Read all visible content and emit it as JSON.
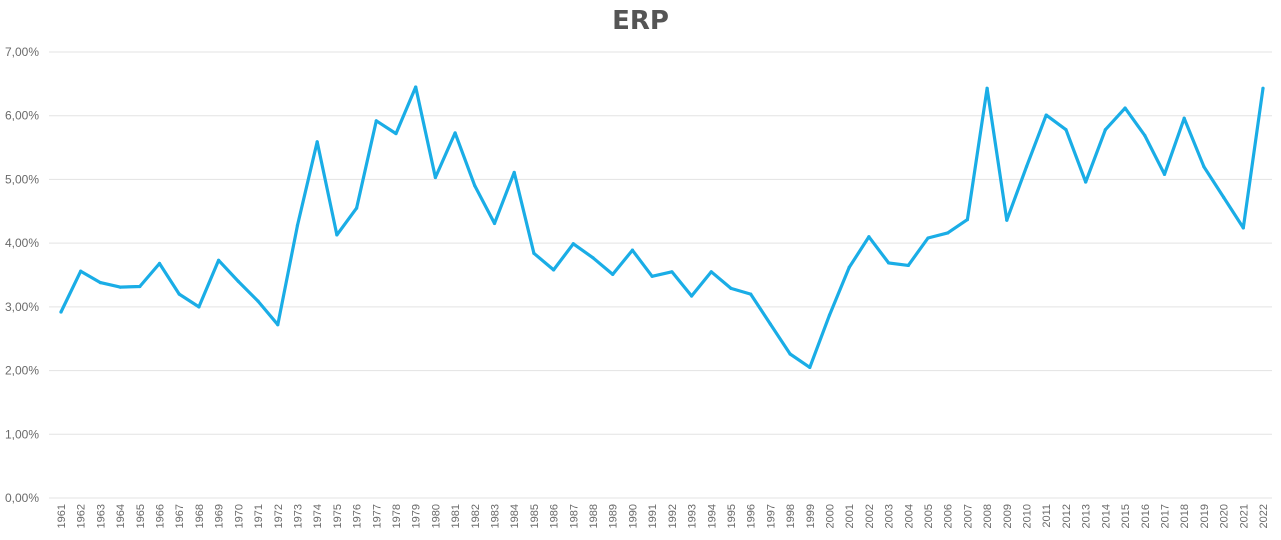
{
  "chart_data": {
    "type": "line",
    "title": "ERP",
    "xlabel": "",
    "ylabel": "",
    "ylim": [
      0,
      7
    ],
    "yticks": [
      0,
      1,
      2,
      3,
      4,
      5,
      6,
      7
    ],
    "ytick_labels": [
      "0,00%",
      "1,00%",
      "2,00%",
      "3,00%",
      "4,00%",
      "5,00%",
      "6,00%",
      "7,00%"
    ],
    "grid": true,
    "legend": "none",
    "line_color": "#1aade6",
    "categories": [
      "1961",
      "1962",
      "1963",
      "1964",
      "1965",
      "1966",
      "1967",
      "1968",
      "1969",
      "1970",
      "1971",
      "1972",
      "1973",
      "1974",
      "1975",
      "1976",
      "1977",
      "1978",
      "1979",
      "1980",
      "1981",
      "1982",
      "1983",
      "1984",
      "1985",
      "1986",
      "1987",
      "1988",
      "1989",
      "1990",
      "1991",
      "1992",
      "1993",
      "1994",
      "1995",
      "1996",
      "1997",
      "1998",
      "1999",
      "2000",
      "2001",
      "2002",
      "2003",
      "2004",
      "2005",
      "2006",
      "2007",
      "2008",
      "2009",
      "2010",
      "2011",
      "2012",
      "2013",
      "2014",
      "2015",
      "2016",
      "2017",
      "2018",
      "2019",
      "2020",
      "2021",
      "2022"
    ],
    "series": [
      {
        "name": "",
        "values": [
          2.92,
          3.56,
          3.38,
          3.31,
          3.32,
          3.68,
          3.2,
          3.0,
          3.73,
          3.4,
          3.09,
          2.72,
          4.28,
          5.59,
          4.13,
          4.55,
          5.92,
          5.72,
          6.45,
          5.03,
          5.73,
          4.9,
          4.31,
          5.11,
          3.84,
          3.58,
          3.99,
          3.77,
          3.51,
          3.89,
          3.48,
          3.55,
          3.17,
          3.55,
          3.29,
          3.2,
          2.73,
          2.26,
          2.05,
          2.87,
          3.62,
          4.1,
          3.69,
          3.65,
          4.08,
          4.16,
          4.37,
          6.43,
          4.36,
          5.2,
          6.01,
          5.78,
          4.96,
          5.78,
          6.12,
          5.69,
          5.08,
          5.96,
          5.2,
          4.72,
          4.24,
          6.43
        ]
      }
    ]
  }
}
